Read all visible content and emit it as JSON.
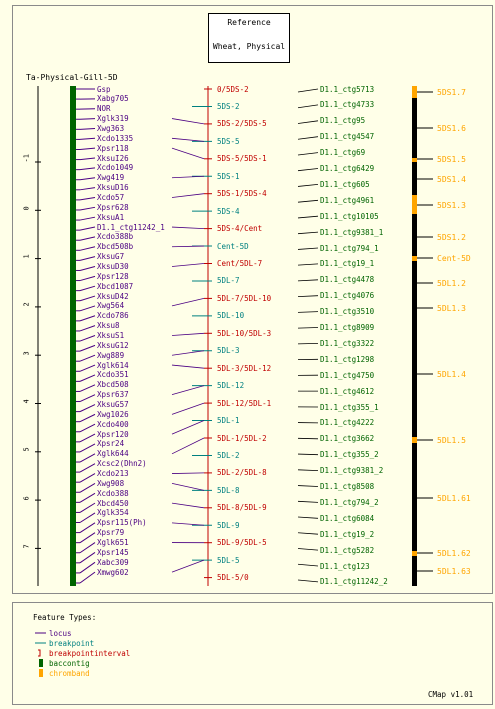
{
  "reference": {
    "title": "Reference",
    "subtitle": "Wheat, Physical"
  },
  "map_title": "Ta-Physical-Gill-5D",
  "colors": {
    "locus": "#4b0082",
    "breakpoint": "#008080",
    "interval": "#c00000",
    "contig": "#006400",
    "chromband": "#ffa500",
    "bg": "#ffffe8"
  },
  "scale_ticks": [
    "-1",
    "0",
    "1",
    "2",
    "3",
    "4",
    "5",
    "6",
    "7"
  ],
  "loci": [
    "Gsp",
    "Xabg705",
    "NOR",
    "Xglk319",
    "Xwg363",
    "Xcdo1335",
    "Xpsr118",
    "XksuI26",
    "Xcdo1049",
    "Xwg419",
    "XksuD16",
    "Xcdo57",
    "Xpsr628",
    "XksuA1",
    "D1.1_ctg11242_1",
    "Xcdo388b",
    "Xbcd508b",
    "XksuG7",
    "XksuD30",
    "Xpsr128",
    "Xbcd1087",
    "XksuD42",
    "Xwg564",
    "Xcdo786",
    "Xksu8",
    "XksuS1",
    "XksuG12",
    "Xwg889",
    "Xglk614",
    "Xcdo351",
    "Xbcd508",
    "Xpsr637",
    "XksuG57",
    "Xwg1026",
    "Xcdo400",
    "Xpsr120",
    "Xpsr24",
    "Xglk644",
    "Xcsc2(Dhn2)",
    "Xcdo213",
    "Xwg908",
    "Xcdo388",
    "Xbcd450",
    "Xglk354",
    "Xpsr115(Ph)",
    "Xpsr79",
    "Xglk651",
    "Xpsr145",
    "Xabc309",
    "Xmwg602"
  ],
  "breakpoints": [
    "0/5DS-2",
    "5DS-2",
    "5DS-2/5DS-5",
    "5DS-5",
    "5DS-5/5DS-1",
    "5DS-1",
    "5DS-1/5DS-4",
    "5DS-4",
    "5DS-4/Cent",
    "Cent-5D",
    "Cent/5DL-7",
    "5DL-7",
    "5DL-7/5DL-10",
    "5DL-10",
    "5DL-10/5DL-3",
    "5DL-3",
    "5DL-3/5DL-12",
    "5DL-12",
    "5DL-12/5DL-1",
    "5DL-1",
    "5DL-1/5DL-2",
    "5DL-2",
    "5DL-2/5DL-8",
    "5DL-8",
    "5DL-8/5DL-9",
    "5DL-9",
    "5DL-9/5DL-5",
    "5DL-5",
    "5DL-5/0"
  ],
  "contigs": [
    "D1.1_ctg5713",
    "D1.1_ctg4733",
    "D1.1_ctg95",
    "D1.1_ctg4547",
    "D1.1_ctg69",
    "D1.1_ctg6429",
    "D1.1_ctg605",
    "D1.1_ctg4961",
    "D1.1_ctg10105",
    "D1.1_ctg9381_1",
    "D1.1_ctg794_1",
    "D1.1_ctg19_1",
    "D1.1_ctg4478",
    "D1.1_ctg4076",
    "D1.1_ctg3510",
    "D1.1_ctg8909",
    "D1.1_ctg3322",
    "D1.1_ctg1298",
    "D1.1_ctg4750",
    "D1.1_ctg4612",
    "D1.1_ctg355_1",
    "D1.1_ctg4222",
    "D1.1_ctg3662",
    "D1.1_ctg355_2",
    "D1.1_ctg9381_2",
    "D1.1_ctg8508",
    "D1.1_ctg794_2",
    "D1.1_ctg6084",
    "D1.1_ctg19_2",
    "D1.1_ctg5282",
    "D1.1_ctg123",
    "D1.1_ctg11242_2"
  ],
  "bands": [
    "5DS1.7",
    "5DS1.6",
    "5DS1.5",
    "5DS1.4",
    "5DS1.3",
    "5DS1.2",
    "Cent-5D",
    "5DL1.2",
    "5DL1.3",
    "5DL1.4",
    "5DL1.5",
    "5DL1.61",
    "5DL1.62",
    "5DL1.63"
  ],
  "legend": {
    "title": "Feature Types:",
    "items": [
      {
        "name": "locus",
        "kind": "line",
        "color": "#4b0082"
      },
      {
        "name": "breakpoint",
        "kind": "line",
        "color": "#008080"
      },
      {
        "name": "breakpointinterval",
        "kind": "bracket",
        "color": "#c00000"
      },
      {
        "name": "baccontig",
        "kind": "box",
        "color": "#006400"
      },
      {
        "name": "chromband",
        "kind": "box",
        "color": "#ffa500"
      }
    ]
  },
  "footer": "CMap v1.01"
}
